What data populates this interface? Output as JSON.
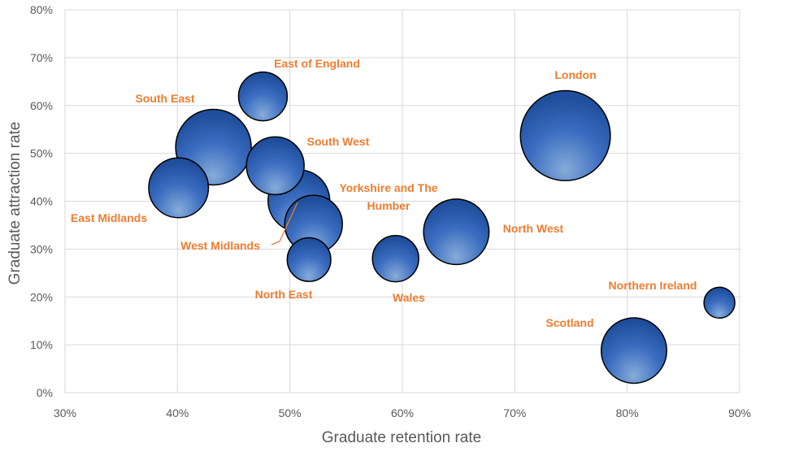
{
  "chart_data": {
    "type": "bubble",
    "title": "",
    "xlabel": "Graduate retention rate",
    "ylabel": "Graduate attraction rate",
    "xlim": [
      0.3,
      0.9
    ],
    "ylim": [
      0,
      0.8
    ],
    "x_ticks": [
      "30%",
      "40%",
      "50%",
      "60%",
      "70%",
      "80%",
      "90%"
    ],
    "y_ticks": [
      "0%",
      "10%",
      "20%",
      "30%",
      "40%",
      "50%",
      "60%",
      "70%",
      "80%"
    ],
    "grid": true,
    "colors": {
      "bubble_fill_light": "#7ea6e0",
      "bubble_fill_dark": "#1f4ea0",
      "bubble_stroke": "#000000",
      "label": "#ed7d31",
      "grid": "#d9d9d9"
    },
    "points": [
      {
        "name": "London",
        "x": 0.745,
        "y": 0.537,
        "size": 3.4
      },
      {
        "name": "South East",
        "x": 0.432,
        "y": 0.513,
        "size": 2.4
      },
      {
        "name": "East of England",
        "x": 0.476,
        "y": 0.619,
        "size": 1.0
      },
      {
        "name": "South West",
        "x": 0.487,
        "y": 0.474,
        "size": 1.4
      },
      {
        "name": "East Midlands",
        "x": 0.401,
        "y": 0.428,
        "size": 1.5
      },
      {
        "name": "West Midlands",
        "x": 0.508,
        "y": 0.401,
        "size": 1.6
      },
      {
        "name": "Yorkshire and The Humber",
        "x": 0.521,
        "y": 0.352,
        "size": 1.4
      },
      {
        "name": "North East",
        "x": 0.517,
        "y": 0.278,
        "size": 0.8
      },
      {
        "name": "Wales",
        "x": 0.594,
        "y": 0.28,
        "size": 0.9
      },
      {
        "name": "North West",
        "x": 0.648,
        "y": 0.336,
        "size": 1.8
      },
      {
        "name": "Scotland",
        "x": 0.806,
        "y": 0.088,
        "size": 1.8
      },
      {
        "name": "Northern Ireland",
        "x": 0.882,
        "y": 0.188,
        "size": 0.4
      }
    ]
  }
}
